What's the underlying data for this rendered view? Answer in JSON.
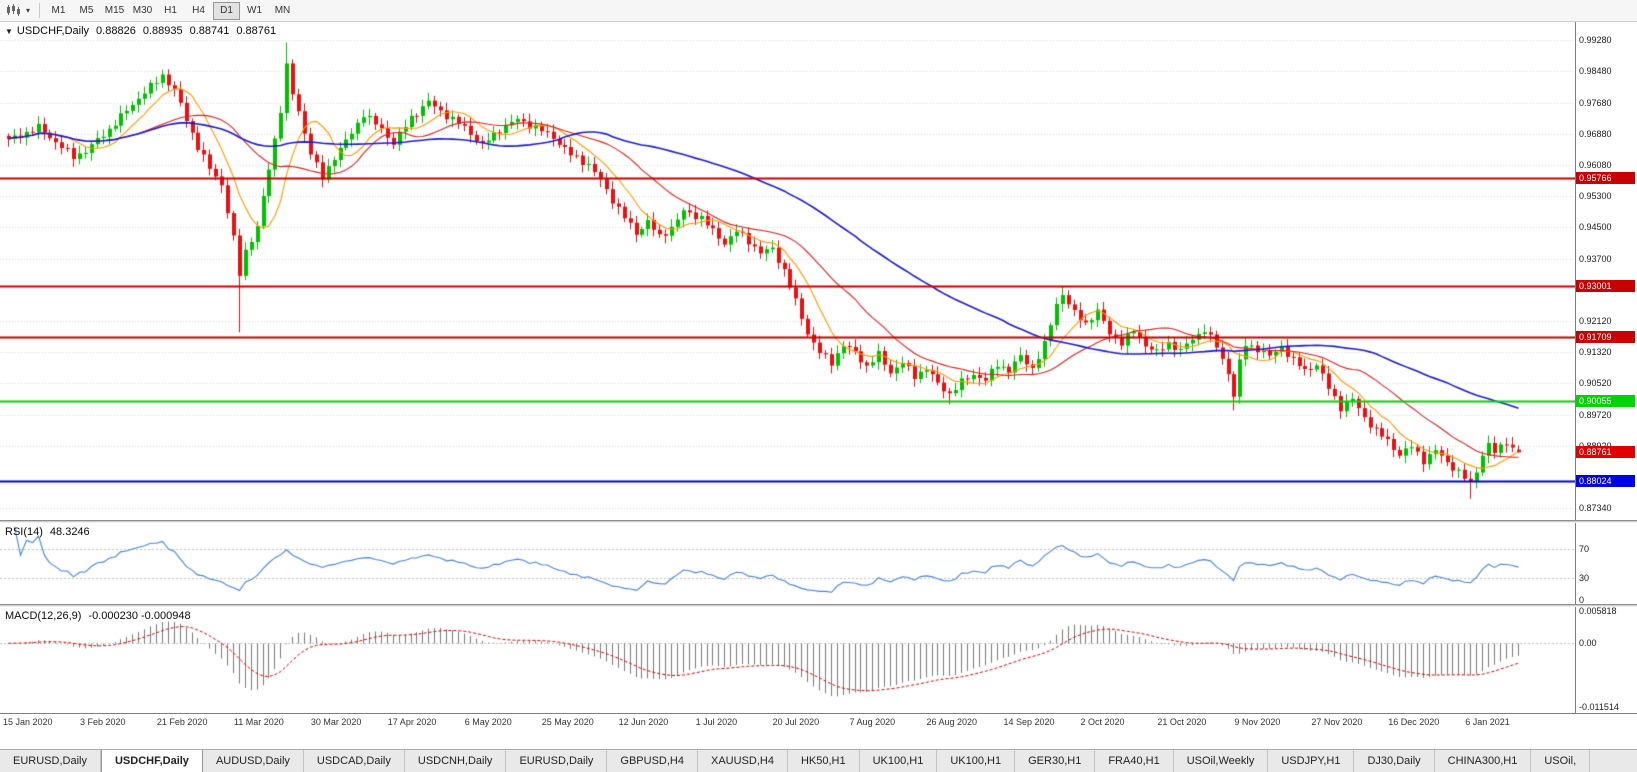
{
  "toolbar": {
    "chart_type_icon": "candlestick-chart-icon",
    "dropdown_icon": "chevron-down-icon",
    "timeframes": [
      "M1",
      "M5",
      "M15",
      "M30",
      "H1",
      "H4",
      "D1",
      "W1",
      "MN"
    ],
    "active_timeframe": "D1"
  },
  "chart": {
    "symbol_period": "USDCHF,Daily",
    "ohlc": {
      "open": "0.88826",
      "high": "0.88935",
      "low": "0.88741",
      "close": "0.88761"
    },
    "scale": {
      "min": 0.8703,
      "max": 0.9974
    },
    "price_axis_labels": [
      {
        "t": "0.99280",
        "v": 0.9928
      },
      {
        "t": "0.98480",
        "v": 0.9848
      },
      {
        "t": "0.97680",
        "v": 0.9768
      },
      {
        "t": "0.96880",
        "v": 0.9688
      },
      {
        "t": "0.96080",
        "v": 0.9608
      },
      {
        "t": "0.95300",
        "v": 0.953
      },
      {
        "t": "0.94500",
        "v": 0.945
      },
      {
        "t": "0.93700",
        "v": 0.937
      },
      {
        "t": "0.92120",
        "v": 0.9212
      },
      {
        "t": "0.91320",
        "v": 0.9132
      },
      {
        "t": "0.90520",
        "v": 0.9052
      },
      {
        "t": "0.89720",
        "v": 0.8972
      },
      {
        "t": "0.88920",
        "v": 0.8892
      },
      {
        "t": "0.87340",
        "v": 0.8734
      }
    ],
    "levels": [
      {
        "label": "0.95766",
        "value": 0.95766,
        "color": "#c80000"
      },
      {
        "label": "0.93001",
        "value": 0.93001,
        "color": "#c80000"
      },
      {
        "label": "0.91709",
        "value": 0.91709,
        "color": "#c80000"
      },
      {
        "label": "0.90055",
        "value": 0.90055,
        "color": "#00d400"
      },
      {
        "label": "0.88024",
        "value": 0.88024,
        "color": "#0000e6"
      }
    ],
    "current_price": {
      "label": "0.88761",
      "value": 0.88761,
      "color": "#e00000"
    }
  },
  "rsi": {
    "label": "RSI(14)",
    "value": "48.3246",
    "color": "#4a86d8",
    "level_lines": [
      70,
      30
    ],
    "axis_labels": [
      {
        "t": "70",
        "v": 70
      },
      {
        "t": "30",
        "v": 30
      },
      {
        "t": "0",
        "v": 0
      }
    ]
  },
  "macd": {
    "label": "MACD(12,26,9)",
    "values": "-0.000230 -0.000948",
    "histogram_color": "#7a7a7a",
    "signal_color": "#dd0000",
    "scale": {
      "min": -0.0125,
      "max": 0.0065
    },
    "axis_labels": [
      {
        "t": "0.005818",
        "v": 0.005818
      },
      {
        "t": "0.00",
        "v": 0
      },
      {
        "t": "-0.011514",
        "v": -0.011514
      }
    ]
  },
  "date_axis": [
    "15 Jan 2020",
    "3 Feb 2020",
    "21 Feb 2020",
    "11 Mar 2020",
    "30 Mar 2020",
    "17 Apr 2020",
    "6 May 2020",
    "25 May 2020",
    "12 Jun 2020",
    "1 Jul 2020",
    "20 Jul 2020",
    "7 Aug 2020",
    "26 Aug 2020",
    "14 Sep 2020",
    "2 Oct 2020",
    "21 Oct 2020",
    "9 Nov 2020",
    "27 Nov 2020",
    "16 Dec 2020",
    "6 Jan 2021"
  ],
  "tabs": {
    "active_index": 1,
    "items": [
      "EURUSD,Daily",
      "USDCHF,Daily",
      "AUDUSD,Daily",
      "USDCAD,Daily",
      "USDCNH,Daily",
      "EURUSD,Daily",
      "GBPUSD,H4",
      "XAUUSD,H4",
      "HK50,H1",
      "UK100,H1",
      "UK100,H1",
      "GER30,H1",
      "FRA40,H1",
      "USOil,Weekly",
      "USDJPY,H1",
      "DJ30,Daily",
      "CHINA300,H1",
      "USOil,"
    ]
  },
  "chart_data": {
    "type": "candlestick",
    "symbol": "USDCHF",
    "period": "Daily",
    "count": 256,
    "up_color": "#00c000",
    "down_color": "#e81010",
    "price_path_anchors": [
      [
        0,
        0.9672
      ],
      [
        5,
        0.9705
      ],
      [
        8,
        0.9668
      ],
      [
        11,
        0.963
      ],
      [
        13,
        0.9645
      ],
      [
        17,
        0.97
      ],
      [
        22,
        0.978
      ],
      [
        26,
        0.9838
      ],
      [
        28,
        0.98
      ],
      [
        30,
        0.9725
      ],
      [
        32,
        0.9655
      ],
      [
        34,
        0.96
      ],
      [
        36,
        0.956
      ],
      [
        38,
        0.942
      ],
      [
        39,
        0.933
      ],
      [
        40,
        0.939
      ],
      [
        42,
        0.945
      ],
      [
        44,
        0.96
      ],
      [
        46,
        0.975
      ],
      [
        47,
        0.986
      ],
      [
        48,
        0.979
      ],
      [
        49,
        0.9745
      ],
      [
        51,
        0.964
      ],
      [
        53,
        0.9575
      ],
      [
        55,
        0.963
      ],
      [
        58,
        0.969
      ],
      [
        60,
        0.974
      ],
      [
        63,
        0.97
      ],
      [
        65,
        0.9665
      ],
      [
        68,
        0.973
      ],
      [
        71,
        0.977
      ],
      [
        74,
        0.9735
      ],
      [
        77,
        0.9705
      ],
      [
        80,
        0.966
      ],
      [
        83,
        0.97
      ],
      [
        86,
        0.9725
      ],
      [
        89,
        0.9705
      ],
      [
        92,
        0.968
      ],
      [
        95,
        0.9635
      ],
      [
        98,
        0.961
      ],
      [
        100,
        0.957
      ],
      [
        102,
        0.952
      ],
      [
        104,
        0.9475
      ],
      [
        106,
        0.9435
      ],
      [
        108,
        0.9465
      ],
      [
        110,
        0.9425
      ],
      [
        112,
        0.945
      ],
      [
        114,
        0.949
      ],
      [
        117,
        0.9475
      ],
      [
        119,
        0.944
      ],
      [
        121,
        0.941
      ],
      [
        123,
        0.944
      ],
      [
        125,
        0.9415
      ],
      [
        127,
        0.9385
      ],
      [
        129,
        0.9395
      ],
      [
        131,
        0.934
      ],
      [
        133,
        0.926
      ],
      [
        135,
        0.918
      ],
      [
        137,
        0.913
      ],
      [
        139,
        0.9105
      ],
      [
        141,
        0.915
      ],
      [
        143,
        0.913
      ],
      [
        145,
        0.9095
      ],
      [
        147,
        0.9125
      ],
      [
        149,
        0.908
      ],
      [
        151,
        0.9105
      ],
      [
        153,
        0.907
      ],
      [
        155,
        0.909
      ],
      [
        157,
        0.905
      ],
      [
        159,
        0.9025
      ],
      [
        161,
        0.9055
      ],
      [
        163,
        0.9075
      ],
      [
        165,
        0.906
      ],
      [
        167,
        0.91
      ],
      [
        169,
        0.9085
      ],
      [
        171,
        0.912
      ],
      [
        173,
        0.909
      ],
      [
        175,
        0.915
      ],
      [
        177,
        0.9255
      ],
      [
        178,
        0.928
      ],
      [
        180,
        0.923
      ],
      [
        182,
        0.9205
      ],
      [
        184,
        0.9235
      ],
      [
        186,
        0.918
      ],
      [
        188,
        0.9155
      ],
      [
        190,
        0.9185
      ],
      [
        192,
        0.915
      ],
      [
        194,
        0.913
      ],
      [
        196,
        0.9155
      ],
      [
        198,
        0.9135
      ],
      [
        200,
        0.9165
      ],
      [
        202,
        0.919
      ],
      [
        204,
        0.9145
      ],
      [
        206,
        0.908
      ],
      [
        207,
        0.902
      ],
      [
        208,
        0.9105
      ],
      [
        209,
        0.915
      ],
      [
        211,
        0.914
      ],
      [
        213,
        0.912
      ],
      [
        215,
        0.9145
      ],
      [
        217,
        0.911
      ],
      [
        219,
        0.9085
      ],
      [
        221,
        0.91
      ],
      [
        223,
        0.904
      ],
      [
        225,
        0.899
      ],
      [
        227,
        0.901
      ],
      [
        229,
        0.8965
      ],
      [
        231,
        0.893
      ],
      [
        233,
        0.8905
      ],
      [
        235,
        0.887
      ],
      [
        237,
        0.889
      ],
      [
        239,
        0.8855
      ],
      [
        241,
        0.888
      ],
      [
        243,
        0.885
      ],
      [
        245,
        0.8825
      ],
      [
        247,
        0.8795
      ],
      [
        248,
        0.883
      ],
      [
        249,
        0.887
      ],
      [
        250,
        0.8895
      ],
      [
        251,
        0.8875
      ],
      [
        252,
        0.889
      ],
      [
        253,
        0.8905
      ],
      [
        254,
        0.8885
      ],
      [
        255,
        0.8876
      ]
    ],
    "wick_overrides": [
      {
        "i": 26,
        "high": 0.9852
      },
      {
        "i": 39,
        "low": 0.9182
      },
      {
        "i": 47,
        "high": 0.9922
      },
      {
        "i": 159,
        "low": 0.8998
      },
      {
        "i": 178,
        "high": 0.93
      },
      {
        "i": 207,
        "low": 0.8983
      },
      {
        "i": 247,
        "low": 0.8757
      }
    ],
    "moving_averages": [
      {
        "type": "sma",
        "period": 8,
        "color": "#ff9900"
      },
      {
        "type": "sma",
        "period": 21,
        "color": "#dd2222"
      },
      {
        "type": "sma",
        "period": 55,
        "color": "#1c1ccd"
      }
    ]
  }
}
